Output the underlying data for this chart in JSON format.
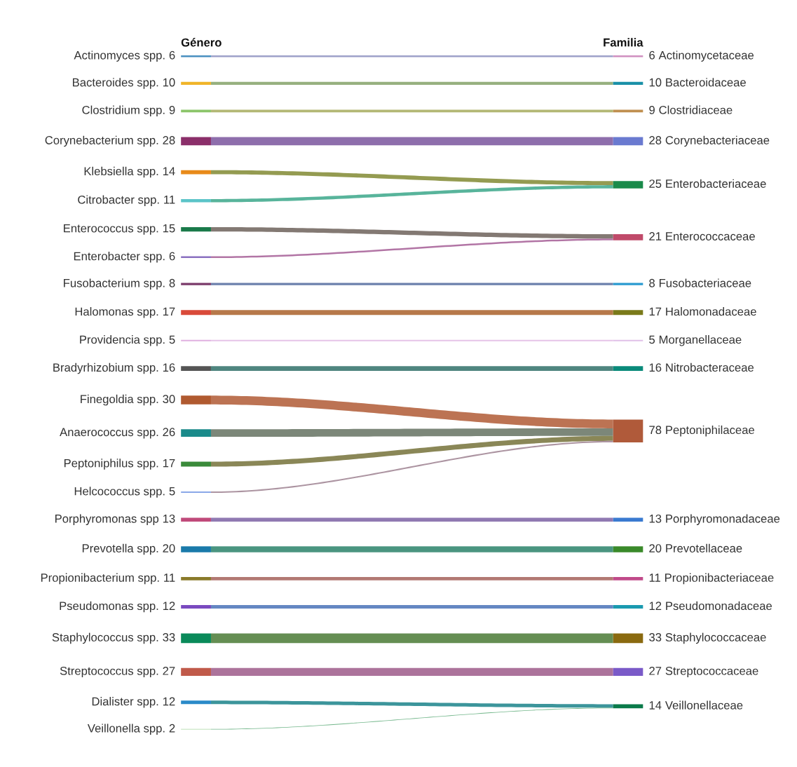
{
  "chart_data": {
    "type": "other",
    "annotations": [
      "Género",
      "Familia"
    ],
    "data_labels": true,
    "categories": [
      "Actinomyces spp.",
      "Bacteroides spp.",
      "Clostridium spp.",
      "Corynebacterium spp.",
      "Klebsiella spp.",
      "Citrobacter spp.",
      "Enterococcus spp.",
      "Enterobacter spp.",
      "Fusobacterium spp.",
      "Halomonas spp.",
      "Providencia spp.",
      "Bradyrhizobium spp.",
      "Finegoldia spp.",
      "Anaerococcus spp.",
      "Peptoniphilus spp.",
      "Helcococcus spp.",
      "Porphyromonas spp",
      "Prevotella spp.",
      "Propionibacterium spp.",
      "Pseudomonas spp.",
      "Staphylococcus spp.",
      "Streptococcus spp.",
      "Dialister spp.",
      "Veillonella spp."
    ],
    "colors": [
      "#4a90c0",
      "#f0b429",
      "#8cc56a",
      "#8b2f6a",
      "#e88a1a",
      "#5bc4c8",
      "#1a7a4a",
      "#8a70c0",
      "#7a3a6a",
      "#d94a3a",
      "#e0b0e0",
      "#555555",
      "#b05a30",
      "#1a8a8a",
      "#3a8a3a",
      "#8aa8e8",
      "#c04a7a",
      "#1a7aaa",
      "#8a7a2a",
      "#7a4ac0",
      "#0a8a5a",
      "#c05a4a",
      "#2a8ac8",
      "#a8d8a0"
    ],
    "totals": [
      "6",
      "10",
      "9",
      "28",
      "25",
      "21",
      "8",
      "17",
      "5",
      "16",
      "78",
      "13",
      "20",
      "11",
      "12",
      "33",
      "27",
      "14"
    ],
    "series": [
      {
        "name": "Actinomycetaceae",
        "color": "#d090c0",
        "values": [
          6,
          null,
          null,
          null,
          null,
          null,
          null,
          null,
          null,
          null,
          null,
          null,
          null,
          null,
          null,
          null,
          null,
          null,
          null,
          null,
          null,
          null,
          null,
          null
        ]
      },
      {
        "name": "Bacteroidaceae",
        "color": "#1a90a8",
        "values": [
          null,
          10,
          null,
          null,
          null,
          null,
          null,
          null,
          null,
          null,
          null,
          null,
          null,
          null,
          null,
          null,
          null,
          null,
          null,
          null,
          null,
          null,
          null,
          null
        ]
      },
      {
        "name": "Clostridiaceae",
        "color": "#c09050",
        "values": [
          null,
          null,
          9,
          null,
          null,
          null,
          null,
          null,
          null,
          null,
          null,
          null,
          null,
          null,
          null,
          null,
          null,
          null,
          null,
          null,
          null,
          null,
          null,
          null
        ]
      },
      {
        "name": "Corynebacteriaceae",
        "color": "#6a7ad0",
        "values": [
          null,
          null,
          null,
          28,
          null,
          null,
          null,
          null,
          null,
          null,
          null,
          null,
          null,
          null,
          null,
          null,
          null,
          null,
          null,
          null,
          null,
          null,
          null,
          null
        ]
      },
      {
        "name": "Enterobacteriaceae",
        "color": "#1a8a4a",
        "values": [
          null,
          null,
          null,
          null,
          14,
          11,
          null,
          null,
          null,
          null,
          null,
          null,
          null,
          null,
          null,
          null,
          null,
          null,
          null,
          null,
          null,
          null,
          null,
          null
        ]
      },
      {
        "name": "Enterococcaceae",
        "color": "#c04a6a",
        "values": [
          null,
          null,
          null,
          null,
          null,
          null,
          15,
          6,
          null,
          null,
          null,
          null,
          null,
          null,
          null,
          null,
          null,
          null,
          null,
          null,
          null,
          null,
          null,
          null
        ]
      },
      {
        "name": "Fusobacteriaceae",
        "color": "#2a9ad0",
        "values": [
          null,
          null,
          null,
          null,
          null,
          null,
          null,
          null,
          8,
          null,
          null,
          null,
          null,
          null,
          null,
          null,
          null,
          null,
          null,
          null,
          null,
          null,
          null,
          null
        ]
      },
      {
        "name": "Halomonadaceae",
        "color": "#7a7a1a",
        "values": [
          null,
          null,
          null,
          null,
          null,
          null,
          null,
          null,
          null,
          17,
          null,
          null,
          null,
          null,
          null,
          null,
          null,
          null,
          null,
          null,
          null,
          null,
          null,
          null
        ]
      },
      {
        "name": "Morganellaceae",
        "color": "#e0c0e8",
        "values": [
          null,
          null,
          null,
          null,
          null,
          null,
          null,
          null,
          null,
          null,
          5,
          null,
          null,
          null,
          null,
          null,
          null,
          null,
          null,
          null,
          null,
          null,
          null,
          null
        ]
      },
      {
        "name": "Nitrobacteraceae",
        "color": "#0a8a7a",
        "values": [
          null,
          null,
          null,
          null,
          null,
          null,
          null,
          null,
          null,
          null,
          null,
          16,
          null,
          null,
          null,
          null,
          null,
          null,
          null,
          null,
          null,
          null,
          null,
          null
        ]
      },
      {
        "name": "Peptoniphilaceae",
        "color": "#b05a3a",
        "values": [
          null,
          null,
          null,
          null,
          null,
          null,
          null,
          null,
          null,
          null,
          null,
          null,
          30,
          26,
          17,
          5,
          null,
          null,
          null,
          null,
          null,
          null,
          null,
          null
        ]
      },
      {
        "name": "Porphyromonadaceae",
        "color": "#3a7ad0",
        "values": [
          null,
          null,
          null,
          null,
          null,
          null,
          null,
          null,
          null,
          null,
          null,
          null,
          null,
          null,
          null,
          null,
          13,
          null,
          null,
          null,
          null,
          null,
          null,
          null
        ]
      },
      {
        "name": "Prevotellaceae",
        "color": "#3a8a2a",
        "values": [
          null,
          null,
          null,
          null,
          null,
          null,
          null,
          null,
          null,
          null,
          null,
          null,
          null,
          null,
          null,
          null,
          null,
          20,
          null,
          null,
          null,
          null,
          null,
          null
        ]
      },
      {
        "name": "Propionibacteriaceae",
        "color": "#c04a8a",
        "values": [
          null,
          null,
          null,
          null,
          null,
          null,
          null,
          null,
          null,
          null,
          null,
          null,
          null,
          null,
          null,
          null,
          null,
          null,
          11,
          null,
          null,
          null,
          null,
          null
        ]
      },
      {
        "name": "Pseudomonadaceae",
        "color": "#1a9ab0",
        "values": [
          null,
          null,
          null,
          null,
          null,
          null,
          null,
          null,
          null,
          null,
          null,
          null,
          null,
          null,
          null,
          null,
          null,
          null,
          null,
          12,
          null,
          null,
          null,
          null
        ]
      },
      {
        "name": "Staphylococcaceae",
        "color": "#8a6a10",
        "values": [
          null,
          null,
          null,
          null,
          null,
          null,
          null,
          null,
          null,
          null,
          null,
          null,
          null,
          null,
          null,
          null,
          null,
          null,
          null,
          null,
          33,
          null,
          null,
          null
        ]
      },
      {
        "name": "Streptococcaceae",
        "color": "#7a5ac8",
        "values": [
          null,
          null,
          null,
          null,
          null,
          null,
          null,
          null,
          null,
          null,
          null,
          null,
          null,
          null,
          null,
          null,
          null,
          null,
          null,
          null,
          null,
          27,
          null,
          null
        ]
      },
      {
        "name": "Veillonellaceae",
        "color": "#0a7a4a",
        "values": [
          null,
          null,
          null,
          null,
          null,
          null,
          null,
          null,
          null,
          null,
          null,
          null,
          null,
          null,
          null,
          null,
          null,
          null,
          null,
          null,
          null,
          null,
          12,
          2
        ]
      }
    ]
  }
}
